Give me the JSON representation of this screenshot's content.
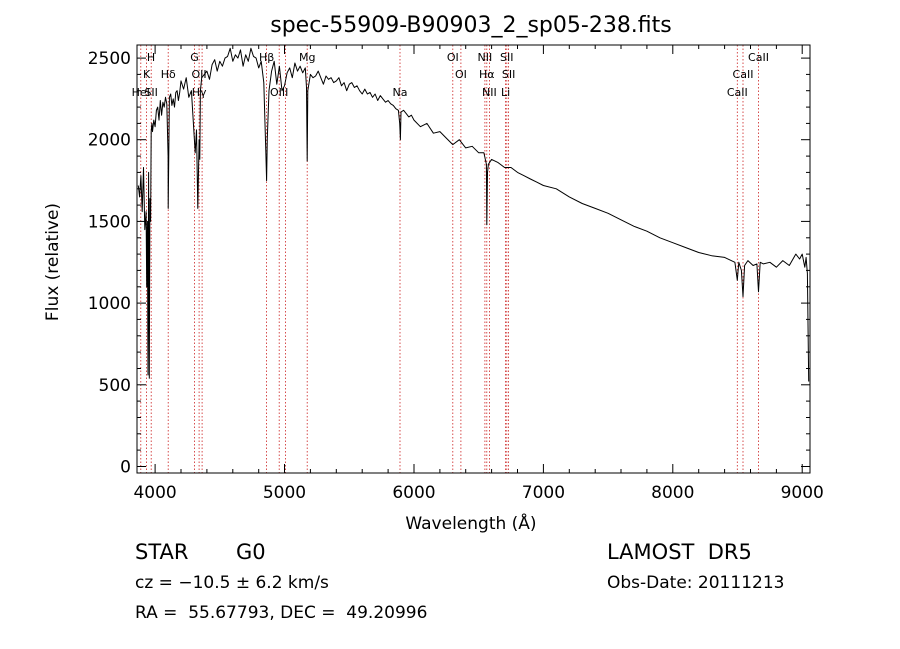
{
  "chart_data": {
    "type": "line",
    "title": "spec-55909-B90903_2_sp05-238.fits",
    "xlabel": "Wavelength (Å)",
    "ylabel": "Flux (relative)",
    "xlim": [
      3860,
      9060
    ],
    "ylim": [
      -40,
      2580
    ],
    "xticks": [
      4000,
      5000,
      6000,
      7000,
      8000,
      9000
    ],
    "yticks": [
      0,
      500,
      1000,
      1500,
      2000,
      2500
    ],
    "grid": false,
    "series": [
      {
        "color": "#000000",
        "x": [
          3870,
          3880,
          3890,
          3900,
          3910,
          3920,
          3930,
          3935,
          3940,
          3945,
          3950,
          3955,
          3960,
          3965,
          3970,
          3975,
          3980,
          3990,
          4000,
          4010,
          4020,
          4030,
          4040,
          4050,
          4060,
          4070,
          4080,
          4090,
          4100,
          4101,
          4110,
          4120,
          4130,
          4140,
          4150,
          4160,
          4170,
          4180,
          4190,
          4200,
          4220,
          4240,
          4260,
          4280,
          4300,
          4310,
          4320,
          4330,
          4340,
          4345,
          4350,
          4360,
          4380,
          4400,
          4420,
          4440,
          4460,
          4480,
          4500,
          4520,
          4540,
          4560,
          4580,
          4600,
          4620,
          4640,
          4660,
          4680,
          4700,
          4720,
          4740,
          4760,
          4780,
          4800,
          4820,
          4840,
          4855,
          4861,
          4867,
          4880,
          4900,
          4920,
          4940,
          4960,
          4980,
          5000,
          5020,
          5040,
          5060,
          5080,
          5100,
          5120,
          5140,
          5160,
          5170,
          5175,
          5180,
          5190,
          5200,
          5220,
          5240,
          5260,
          5280,
          5300,
          5320,
          5340,
          5360,
          5380,
          5400,
          5420,
          5440,
          5460,
          5480,
          5500,
          5520,
          5540,
          5560,
          5580,
          5600,
          5620,
          5640,
          5660,
          5680,
          5700,
          5720,
          5740,
          5760,
          5780,
          5800,
          5820,
          5840,
          5860,
          5880,
          5890,
          5895,
          5900,
          5920,
          5940,
          5960,
          5980,
          6000,
          6050,
          6100,
          6150,
          6200,
          6250,
          6300,
          6350,
          6400,
          6450,
          6500,
          6540,
          6560,
          6563,
          6568,
          6575,
          6600,
          6650,
          6700,
          6750,
          6800,
          6850,
          6900,
          6950,
          7000,
          7100,
          7200,
          7300,
          7400,
          7500,
          7600,
          7700,
          7800,
          7900,
          8000,
          8100,
          8200,
          8300,
          8400,
          8480,
          8498,
          8510,
          8530,
          8542,
          8555,
          8580,
          8620,
          8650,
          8662,
          8675,
          8700,
          8750,
          8800,
          8850,
          8900,
          8950,
          8980,
          9000,
          9020,
          9030,
          9040,
          9050
        ],
        "y": [
          1720,
          1650,
          1780,
          1560,
          1830,
          1450,
          1560,
          1100,
          1500,
          560,
          1800,
          540,
          1640,
          1500,
          2050,
          2100,
          2050,
          2120,
          2080,
          2180,
          2200,
          2120,
          2240,
          2150,
          2230,
          2200,
          2260,
          2220,
          1900,
          1580,
          2260,
          2280,
          2210,
          2250,
          2200,
          2290,
          2300,
          2240,
          2290,
          2360,
          2310,
          2380,
          2260,
          2300,
          2050,
          1920,
          2060,
          1580,
          2000,
          1880,
          2300,
          2380,
          2400,
          2420,
          2370,
          2460,
          2490,
          2420,
          2480,
          2450,
          2500,
          2510,
          2560,
          2480,
          2520,
          2500,
          2550,
          2450,
          2520,
          2480,
          2560,
          2510,
          2500,
          2440,
          2480,
          2350,
          1930,
          1750,
          2010,
          2300,
          2420,
          2480,
          2340,
          2450,
          2300,
          2330,
          2410,
          2440,
          2380,
          2470,
          2420,
          2450,
          2410,
          2440,
          2320,
          1870,
          2300,
          2350,
          2400,
          2380,
          2390,
          2420,
          2380,
          2340,
          2390,
          2370,
          2380,
          2350,
          2360,
          2380,
          2330,
          2350,
          2300,
          2340,
          2350,
          2320,
          2330,
          2300,
          2280,
          2310,
          2280,
          2290,
          2260,
          2280,
          2240,
          2270,
          2250,
          2230,
          2240,
          2220,
          2210,
          2190,
          2180,
          2100,
          2000,
          2170,
          2180,
          2160,
          2140,
          2150,
          2120,
          2080,
          2100,
          2040,
          2050,
          2010,
          1970,
          2000,
          1950,
          1960,
          1920,
          1920,
          1850,
          1480,
          1800,
          1850,
          1880,
          1860,
          1830,
          1830,
          1800,
          1780,
          1760,
          1740,
          1720,
          1700,
          1650,
          1610,
          1580,
          1550,
          1510,
          1470,
          1440,
          1400,
          1370,
          1340,
          1310,
          1290,
          1280,
          1250,
          1140,
          1250,
          1200,
          1040,
          1230,
          1260,
          1230,
          1240,
          1070,
          1250,
          1240,
          1250,
          1220,
          1260,
          1230,
          1300,
          1270,
          1300,
          1220,
          1280,
          1180,
          520
        ]
      }
    ],
    "line_labels": [
      {
        "w": 3934,
        "t": "K",
        "row": 1
      },
      {
        "w": 3968,
        "t": "H",
        "row": 0
      },
      {
        "w": 3889,
        "t": "HeI",
        "row": 2
      },
      {
        "w": 3970,
        "t": "SII",
        "row": 2
      },
      {
        "w": 4101,
        "t": "Hδ",
        "row": 1
      },
      {
        "w": 4304,
        "t": "G",
        "row": 0
      },
      {
        "w": 4340,
        "t": "OII",
        "row": 1
      },
      {
        "w": 4340,
        "t": "Hγ",
        "row": 2
      },
      {
        "w": 4861,
        "t": "Hβ",
        "row": 0
      },
      {
        "w": 4959,
        "t": "OIII",
        "row": 2
      },
      {
        "w": 5175,
        "t": "Mg",
        "row": 0
      },
      {
        "w": 5892,
        "t": "Na",
        "row": 2
      },
      {
        "w": 6300,
        "t": "OI",
        "row": 0
      },
      {
        "w": 6363,
        "t": "OI",
        "row": 1
      },
      {
        "w": 6548,
        "t": "NII",
        "row": 0
      },
      {
        "w": 6563,
        "t": "Hα",
        "row": 1
      },
      {
        "w": 6583,
        "t": "NII",
        "row": 2
      },
      {
        "w": 6717,
        "t": "SII",
        "row": 0
      },
      {
        "w": 6731,
        "t": "SII",
        "row": 1
      },
      {
        "w": 6708,
        "t": "Li",
        "row": 2
      },
      {
        "w": 8498,
        "t": "CaII",
        "row": 2
      },
      {
        "w": 8542,
        "t": "CaII",
        "row": 1
      },
      {
        "w": 8662,
        "t": "CaII",
        "row": 0
      }
    ],
    "marker_lines": [
      3889,
      3934,
      3970,
      4101,
      4304,
      4340,
      4363,
      4861,
      4959,
      5007,
      5175,
      5892,
      6300,
      6363,
      6548,
      6563,
      6583,
      6708,
      6717,
      6731,
      8498,
      8542,
      8662
    ],
    "marker_color": "#cc2222"
  },
  "info": {
    "class_type": "STAR",
    "subclass": "G0",
    "survey": "LAMOST  DR5",
    "cz": "cz = −10.5 ± 6.2 km/s",
    "obs_date": "Obs-Date: 20111213",
    "coords": "RA =  55.67793, DEC =  49.20996"
  }
}
